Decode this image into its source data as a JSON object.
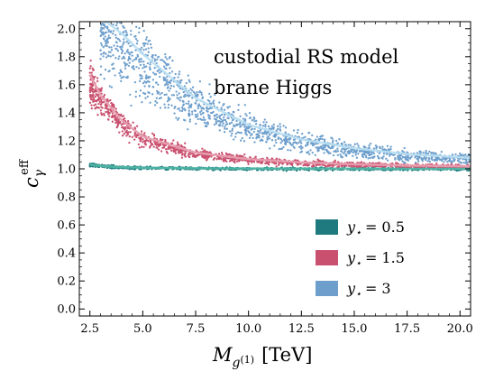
{
  "chart_data": {
    "type": "scatter",
    "title": "",
    "xlabel_main": "M",
    "xlabel_sub": "g",
    "xlabel_sup": "(1)",
    "xlabel_unit": "[TeV]",
    "ylabel_main": "c",
    "ylabel_sub": "γ",
    "ylabel_sup": "eff",
    "xlim": [
      2.0,
      20.5
    ],
    "ylim": [
      -0.05,
      2.05
    ],
    "xticks": [
      2.5,
      5.0,
      7.5,
      10.0,
      12.5,
      15.0,
      17.5,
      20.0
    ],
    "xtick_labels": [
      "2.5",
      "5.0",
      "7.5",
      "10.0",
      "12.5",
      "15.0",
      "17.5",
      "20.0"
    ],
    "yticks": [
      0.0,
      0.2,
      0.4,
      0.6,
      0.8,
      1.0,
      1.2,
      1.4,
      1.6,
      1.8,
      2.0
    ],
    "ytick_labels": [
      "0.0",
      "0.2",
      "0.4",
      "0.6",
      "0.8",
      "1.0",
      "1.2",
      "1.4",
      "1.6",
      "1.8",
      "2.0"
    ],
    "annotation": [
      "custodial RS model",
      "brane Higgs"
    ],
    "legend_position": "lower-right",
    "series": [
      {
        "name": "y⋆ = 0.5",
        "legend_label": "= 0.5",
        "color": "#1f7a7f",
        "line_color": "#52b8a6",
        "points": [
          [
            2.5,
            1.03
          ],
          [
            3,
            1.02
          ],
          [
            4,
            1.012
          ],
          [
            5,
            1.008
          ],
          [
            7.5,
            1.004
          ],
          [
            10,
            1.002
          ],
          [
            12.5,
            1.001
          ],
          [
            15,
            1.001
          ],
          [
            17.5,
            1.0
          ],
          [
            20.5,
            1.0
          ]
        ]
      },
      {
        "name": "y⋆ = 1.5",
        "legend_label": "= 1.5",
        "color": "#c9506e",
        "line_color": "#e8a2b2",
        "points": [
          [
            2.5,
            1.64
          ],
          [
            3,
            1.5
          ],
          [
            4,
            1.33
          ],
          [
            5,
            1.22
          ],
          [
            7.5,
            1.11
          ],
          [
            10,
            1.066
          ],
          [
            12.5,
            1.044
          ],
          [
            15,
            1.031
          ],
          [
            17.5,
            1.023
          ],
          [
            20.5,
            1.017
          ]
        ]
      },
      {
        "name": "y⋆ = 3",
        "legend_label": "= 3",
        "color": "#6e9fcc",
        "line_color": "#b9dff2",
        "points": [
          [
            3,
            2.03
          ],
          [
            4,
            1.92
          ],
          [
            5,
            1.78
          ],
          [
            7.5,
            1.48
          ],
          [
            10,
            1.3
          ],
          [
            12.5,
            1.2
          ],
          [
            15,
            1.14
          ],
          [
            17.5,
            1.1
          ],
          [
            20.5,
            1.075
          ]
        ]
      }
    ]
  }
}
